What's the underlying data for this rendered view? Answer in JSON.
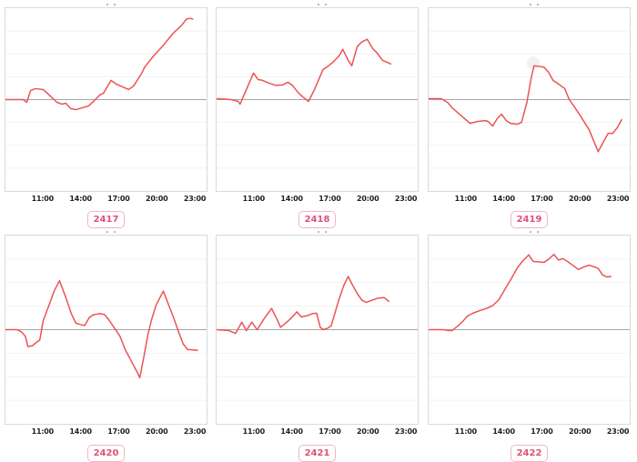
{
  "page": {
    "background": "#ffffff"
  },
  "styles": {
    "line_color": "#ed5354",
    "grid_color": "#f2f2f2",
    "zero_line_color": "#a6a6a6",
    "plot_border_color": "#d9d9d9",
    "tick_label_color": "#1f1f1f",
    "badge_text_color": "#e0507e",
    "badge_border_color": "#f4b3c6",
    "ghost_marker_color": "#efefef"
  },
  "x_axis": {
    "domain_hours": [
      8,
      24
    ],
    "tick_hours": [
      11,
      14,
      17,
      20,
      23
    ],
    "tick_labels": [
      "11:00",
      "14:00",
      "17:00",
      "20:00",
      "23:00"
    ]
  },
  "y_axis": {
    "labels_visible": false,
    "normalized_range": [
      -1,
      1
    ],
    "zero_line_at": 0,
    "gridlines": "horizontal-light"
  },
  "chart_data": [
    {
      "type": "line",
      "label": "2417",
      "x_unit": "time-of-day-hours",
      "y_unit": "normalized",
      "xlim": [
        8,
        24
      ],
      "ylim": [
        -1,
        1
      ],
      "points": [
        [
          8,
          0
        ],
        [
          9.4,
          0
        ],
        [
          9.7,
          -0.03
        ],
        [
          10,
          0.1
        ],
        [
          10.4,
          0.12
        ],
        [
          11,
          0.11
        ],
        [
          11.4,
          0.06
        ],
        [
          12.1,
          -0.03
        ],
        [
          12.5,
          -0.05
        ],
        [
          12.8,
          -0.04
        ],
        [
          13.2,
          -0.1
        ],
        [
          13.6,
          -0.11
        ],
        [
          14.1,
          -0.09
        ],
        [
          14.6,
          -0.07
        ],
        [
          15,
          -0.02
        ],
        [
          15.5,
          0.05
        ],
        [
          15.8,
          0.07
        ],
        [
          16.4,
          0.21
        ],
        [
          16.8,
          0.17
        ],
        [
          17.3,
          0.14
        ],
        [
          17.8,
          0.11
        ],
        [
          18.2,
          0.15
        ],
        [
          18.8,
          0.28
        ],
        [
          19.1,
          0.36
        ],
        [
          19.8,
          0.48
        ],
        [
          20.6,
          0.6
        ],
        [
          21.3,
          0.72
        ],
        [
          22,
          0.81
        ],
        [
          22.4,
          0.88
        ],
        [
          22.7,
          0.89
        ],
        [
          22.9,
          0.88
        ]
      ]
    },
    {
      "type": "line",
      "label": "2418",
      "x_unit": "time-of-day-hours",
      "y_unit": "normalized",
      "xlim": [
        8,
        24
      ],
      "ylim": [
        -1,
        1
      ],
      "points": [
        [
          8,
          0.01
        ],
        [
          9.15,
          0
        ],
        [
          9.72,
          -0.02
        ],
        [
          9.87,
          -0.05
        ],
        [
          10.94,
          0.29
        ],
        [
          11.3,
          0.22
        ],
        [
          11.66,
          0.21
        ],
        [
          12.16,
          0.18
        ],
        [
          12.74,
          0.155
        ],
        [
          13.24,
          0.16
        ],
        [
          13.67,
          0.19
        ],
        [
          14.03,
          0.155
        ],
        [
          14.53,
          0.07
        ],
        [
          14.89,
          0.025
        ],
        [
          15.32,
          -0.02
        ],
        [
          15.82,
          0.12
        ],
        [
          16.47,
          0.33
        ],
        [
          16.82,
          0.36
        ],
        [
          17.26,
          0.41
        ],
        [
          17.76,
          0.48
        ],
        [
          18.04,
          0.55
        ],
        [
          18.47,
          0.43
        ],
        [
          18.76,
          0.37
        ],
        [
          19.19,
          0.58
        ],
        [
          19.55,
          0.63
        ],
        [
          19.98,
          0.66
        ],
        [
          20.41,
          0.56
        ],
        [
          20.77,
          0.51
        ],
        [
          21.2,
          0.43
        ],
        [
          21.7,
          0.4
        ],
        [
          21.85,
          0.39
        ]
      ]
    },
    {
      "type": "line",
      "label": "2419",
      "x_unit": "time-of-day-hours",
      "y_unit": "normalized",
      "xlim": [
        8,
        24
      ],
      "ylim": [
        -1,
        1
      ],
      "ghost_marker": {
        "x": 16.32,
        "y": 0.4
      },
      "points": [
        [
          8,
          0.01
        ],
        [
          9,
          0.01
        ],
        [
          9.5,
          -0.03
        ],
        [
          9.87,
          -0.09
        ],
        [
          10.37,
          -0.15
        ],
        [
          11.3,
          -0.26
        ],
        [
          11.87,
          -0.24
        ],
        [
          12.52,
          -0.23
        ],
        [
          12.74,
          -0.24
        ],
        [
          13.09,
          -0.29
        ],
        [
          13.45,
          -0.21
        ],
        [
          13.81,
          -0.16
        ],
        [
          14.17,
          -0.23
        ],
        [
          14.53,
          -0.26
        ],
        [
          15.03,
          -0.27
        ],
        [
          15.39,
          -0.25
        ],
        [
          15.82,
          -0.03
        ],
        [
          16.18,
          0.25
        ],
        [
          16.39,
          0.37
        ],
        [
          16.68,
          0.365
        ],
        [
          17.18,
          0.355
        ],
        [
          17.54,
          0.3
        ],
        [
          17.9,
          0.21
        ],
        [
          18.33,
          0.17
        ],
        [
          18.83,
          0.12
        ],
        [
          19.19,
          0
        ],
        [
          19.7,
          -0.1
        ],
        [
          20.13,
          -0.19
        ],
        [
          20.77,
          -0.33
        ],
        [
          21.49,
          -0.57
        ],
        [
          21.92,
          -0.46
        ],
        [
          22.28,
          -0.37
        ],
        [
          22.64,
          -0.37
        ],
        [
          23,
          -0.31
        ],
        [
          23.36,
          -0.22
        ]
      ]
    },
    {
      "type": "line",
      "label": "2420",
      "x_unit": "time-of-day-hours",
      "y_unit": "normalized",
      "xlim": [
        8,
        24
      ],
      "ylim": [
        -1,
        1
      ],
      "points": [
        [
          8,
          0
        ],
        [
          8.93,
          0
        ],
        [
          9.29,
          -0.025
        ],
        [
          9.58,
          -0.07
        ],
        [
          9.79,
          -0.18
        ],
        [
          10.15,
          -0.17
        ],
        [
          10.51,
          -0.13
        ],
        [
          10.73,
          -0.11
        ],
        [
          11.01,
          0.1
        ],
        [
          11.44,
          0.25
        ],
        [
          11.87,
          0.41
        ],
        [
          12.3,
          0.52
        ],
        [
          12.81,
          0.34
        ],
        [
          13.24,
          0.17
        ],
        [
          13.6,
          0.07
        ],
        [
          13.95,
          0.055
        ],
        [
          14.31,
          0.045
        ],
        [
          14.67,
          0.13
        ],
        [
          15.03,
          0.16
        ],
        [
          15.53,
          0.17
        ],
        [
          15.89,
          0.16
        ],
        [
          16.25,
          0.1
        ],
        [
          16.68,
          0.015
        ],
        [
          17.11,
          -0.07
        ],
        [
          17.54,
          -0.215
        ],
        [
          18.04,
          -0.34
        ],
        [
          18.55,
          -0.47
        ],
        [
          18.69,
          -0.51
        ],
        [
          18.98,
          -0.31
        ],
        [
          19.33,
          -0.055
        ],
        [
          19.62,
          0.105
        ],
        [
          19.98,
          0.26
        ],
        [
          20.56,
          0.41
        ],
        [
          20.99,
          0.26
        ],
        [
          21.34,
          0.14
        ],
        [
          21.78,
          -0.025
        ],
        [
          22.13,
          -0.15
        ],
        [
          22.49,
          -0.21
        ],
        [
          22.92,
          -0.215
        ],
        [
          23.28,
          -0.22
        ]
      ]
    },
    {
      "type": "line",
      "label": "2421",
      "x_unit": "time-of-day-hours",
      "y_unit": "normalized",
      "xlim": [
        8,
        24
      ],
      "ylim": [
        -1,
        1
      ],
      "points": [
        [
          8,
          0
        ],
        [
          9,
          -0.01
        ],
        [
          9.51,
          -0.04
        ],
        [
          10.01,
          0.08
        ],
        [
          10.37,
          -0.01
        ],
        [
          10.8,
          0.08
        ],
        [
          11.23,
          0
        ],
        [
          11.8,
          0.12
        ],
        [
          12.38,
          0.225
        ],
        [
          12.88,
          0.09
        ],
        [
          13.09,
          0.025
        ],
        [
          13.67,
          0.09
        ],
        [
          14.03,
          0.135
        ],
        [
          14.39,
          0.19
        ],
        [
          14.74,
          0.135
        ],
        [
          15.25,
          0.15
        ],
        [
          15.61,
          0.17
        ],
        [
          15.96,
          0.175
        ],
        [
          16.25,
          0.025
        ],
        [
          16.47,
          0
        ],
        [
          16.82,
          0.015
        ],
        [
          17.11,
          0.04
        ],
        [
          17.76,
          0.33
        ],
        [
          18.12,
          0.47
        ],
        [
          18.47,
          0.565
        ],
        [
          18.83,
          0.47
        ],
        [
          19.19,
          0.385
        ],
        [
          19.55,
          0.315
        ],
        [
          19.91,
          0.29
        ],
        [
          20.41,
          0.315
        ],
        [
          20.84,
          0.335
        ],
        [
          21.34,
          0.34
        ],
        [
          21.7,
          0.3
        ]
      ]
    },
    {
      "type": "line",
      "label": "2422",
      "x_unit": "time-of-day-hours",
      "y_unit": "normalized",
      "xlim": [
        8,
        24
      ],
      "ylim": [
        -1,
        1
      ],
      "points": [
        [
          8,
          0
        ],
        [
          9.15,
          0
        ],
        [
          9.65,
          -0.01
        ],
        [
          9.87,
          -0.01
        ],
        [
          10.37,
          0.045
        ],
        [
          10.73,
          0.09
        ],
        [
          11.09,
          0.145
        ],
        [
          11.52,
          0.175
        ],
        [
          12.02,
          0.2
        ],
        [
          12.59,
          0.225
        ],
        [
          13.09,
          0.255
        ],
        [
          13.6,
          0.32
        ],
        [
          14.03,
          0.42
        ],
        [
          14.53,
          0.53
        ],
        [
          15.03,
          0.65
        ],
        [
          15.39,
          0.715
        ],
        [
          15.96,
          0.795
        ],
        [
          16.32,
          0.725
        ],
        [
          16.82,
          0.72
        ],
        [
          17.18,
          0.715
        ],
        [
          17.61,
          0.755
        ],
        [
          17.97,
          0.8
        ],
        [
          18.33,
          0.74
        ],
        [
          18.69,
          0.755
        ],
        [
          19.05,
          0.725
        ],
        [
          19.4,
          0.69
        ],
        [
          19.91,
          0.64
        ],
        [
          20.41,
          0.67
        ],
        [
          20.77,
          0.685
        ],
        [
          21.13,
          0.67
        ],
        [
          21.49,
          0.65
        ],
        [
          21.85,
          0.58
        ],
        [
          22.21,
          0.56
        ],
        [
          22.49,
          0.565
        ]
      ]
    }
  ]
}
